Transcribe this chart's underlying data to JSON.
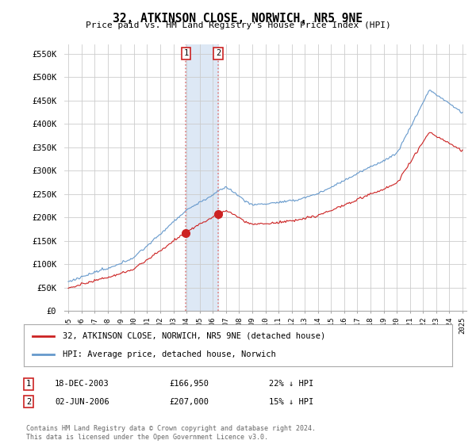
{
  "title": "32, ATKINSON CLOSE, NORWICH, NR5 9NE",
  "subtitle": "Price paid vs. HM Land Registry's House Price Index (HPI)",
  "ylabel_ticks": [
    "£0",
    "£50K",
    "£100K",
    "£150K",
    "£200K",
    "£250K",
    "£300K",
    "£350K",
    "£400K",
    "£450K",
    "£500K",
    "£550K"
  ],
  "ytick_vals": [
    0,
    50000,
    100000,
    150000,
    200000,
    250000,
    300000,
    350000,
    400000,
    450000,
    500000,
    550000
  ],
  "ylim": [
    0,
    570000
  ],
  "legend_line1": "32, ATKINSON CLOSE, NORWICH, NR5 9NE (detached house)",
  "legend_line2": "HPI: Average price, detached house, Norwich",
  "transaction1_date": "18-DEC-2003",
  "transaction1_price": "£166,950",
  "transaction1_hpi": "22% ↓ HPI",
  "transaction2_date": "02-JUN-2006",
  "transaction2_price": "£207,000",
  "transaction2_hpi": "15% ↓ HPI",
  "footer": "Contains HM Land Registry data © Crown copyright and database right 2024.\nThis data is licensed under the Open Government Licence v3.0.",
  "hpi_color": "#6699cc",
  "price_color": "#cc2222",
  "marker_color": "#cc2222",
  "shade_color": "#dde8f5",
  "vline_color": "#e08080",
  "background_color": "#ffffff",
  "grid_color": "#cccccc",
  "transaction1_x": 2003.96,
  "transaction2_x": 2006.42,
  "transaction1_price_val": 166950,
  "transaction2_price_val": 207000
}
